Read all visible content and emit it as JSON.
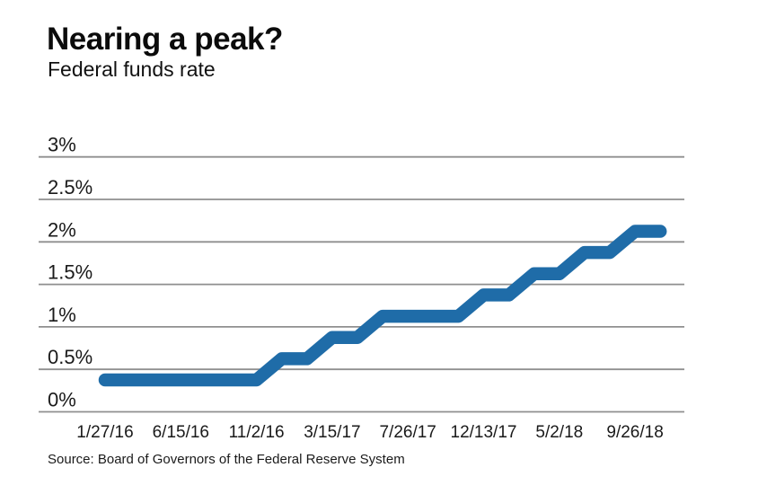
{
  "chart_data": {
    "type": "line",
    "title": "Nearing a peak?",
    "subtitle": "Federal funds rate",
    "source": "Source: Board of Governors of the Federal Reserve System",
    "ylabel": "",
    "xlabel": "",
    "ylim": [
      0,
      3
    ],
    "grid": true,
    "ytick_values": [
      0,
      0.5,
      1,
      1.5,
      2,
      2.5,
      3
    ],
    "ytick_labels": [
      "0%",
      "0.5%",
      "1%",
      "1.5%",
      "2%",
      "2.5%",
      "3%"
    ],
    "xtick_labels": [
      "1/27/16",
      "6/15/16",
      "11/2/16",
      "3/15/17",
      "7/26/17",
      "12/13/17",
      "5/2/18",
      "9/26/18"
    ],
    "xtick_indices": [
      0,
      3,
      6,
      9,
      12,
      15,
      18,
      21
    ],
    "values": [
      0.375,
      0.375,
      0.375,
      0.375,
      0.375,
      0.375,
      0.375,
      0.625,
      0.625,
      0.875,
      0.875,
      1.125,
      1.125,
      1.125,
      1.125,
      1.375,
      1.375,
      1.625,
      1.625,
      1.875,
      1.875,
      2.125,
      2.125
    ],
    "line_color": "#1f6ca8",
    "grid_color": "#8f8f8f",
    "text_color": "#1a1a1a"
  }
}
